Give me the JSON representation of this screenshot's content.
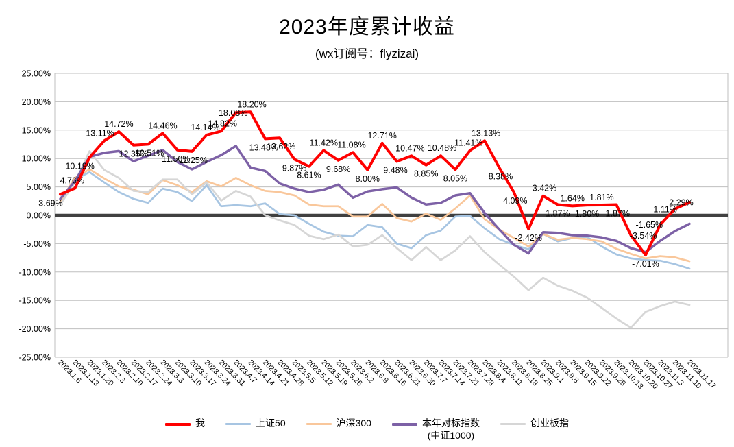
{
  "title": "2023年度累计收益",
  "subtitle": "(wx订阅号：flyzizai)",
  "colors": {
    "grid": "#BFBFBF",
    "zero_line": "#404040",
    "text": "#000000"
  },
  "chart_data": {
    "type": "line",
    "title": "2023年度累计收益",
    "subtitle": "(wx订阅号：flyzizai)",
    "xlabel": "",
    "ylabel": "",
    "ylim": [
      -25,
      25
    ],
    "y_tick_step": 5,
    "grid": true,
    "legend_position": "bottom",
    "y_ticks": [
      "25.00%",
      "20.00%",
      "15.00%",
      "10.00%",
      "5.00%",
      "0.00%",
      "-5.00%",
      "-10.00%",
      "-15.00%",
      "-20.00%",
      "-25.00%"
    ],
    "categories": [
      "2023.1.6",
      "2023.1.13",
      "2023.1.20",
      "2023.2.3",
      "2023.2.10",
      "2023.2.17",
      "2023.2.24",
      "2023.3.3",
      "2023.3.10",
      "2023.3.17",
      "2023.3.24",
      "2023.3.31",
      "2023.4.7",
      "2023.4.14",
      "2023.4.21",
      "2023.4.28",
      "2023.5.5",
      "2023.5.12",
      "2023.5.19",
      "2023.5.26",
      "2023.6.2",
      "2023.6.9",
      "2023.6.16",
      "2023.6.21",
      "2023.6.30",
      "2023.7.7",
      "2023.7.14",
      "2023.7.21",
      "2023.7.28",
      "2023.8.4",
      "2023.8.11",
      "2023.8.18",
      "2023.8.25",
      "2023.9.1",
      "2023.9.8",
      "2023.9.15",
      "2023.9.22",
      "2023.9.28",
      "2023.10.13",
      "2023.10.20",
      "2023.10.27",
      "2023.11.3",
      "2023.11.10",
      "2023.11.17"
    ],
    "series": [
      {
        "name": "上证50",
        "color": "#A7C5E2",
        "width": 2.75,
        "data_labels": false,
        "values": [
          2.2,
          6.3,
          7.6,
          5.8,
          4.1,
          2.9,
          2.2,
          4.7,
          4.1,
          2.5,
          5.3,
          1.6,
          1.8,
          1.6,
          2.1,
          0.2,
          0.0,
          -1.5,
          -2.9,
          -3.6,
          -3.7,
          -1.7,
          -2.1,
          -5.0,
          -5.8,
          -3.5,
          -2.7,
          -0.2,
          -0.1,
          -2.3,
          -4.2,
          -5.2,
          -6.0,
          -3.3,
          -4.6,
          -4.0,
          -3.8,
          -5.5,
          -6.9,
          -7.6,
          -7.9,
          -8.0,
          -8.6,
          -9.4
        ]
      },
      {
        "name": "沪深300",
        "color": "#F9C79B",
        "width": 2.75,
        "data_labels": false,
        "values": [
          2.5,
          6.6,
          8.1,
          6.5,
          5.1,
          4.5,
          3.7,
          6.2,
          5.3,
          4.1,
          6.0,
          5.1,
          6.6,
          5.3,
          4.3,
          4.1,
          3.5,
          1.9,
          1.6,
          1.6,
          -0.2,
          -0.2,
          2.0,
          -0.5,
          -1.1,
          0.3,
          -0.8,
          1.2,
          3.5,
          -0.7,
          -2.5,
          -4.0,
          -5.5,
          -3.3,
          -4.3,
          -4.0,
          -4.2,
          -4.6,
          -5.9,
          -6.8,
          -7.6,
          -7.2,
          -7.4,
          -8.1
        ]
      },
      {
        "name": "创业板指",
        "color": "#D6D6D6",
        "width": 2.75,
        "data_labels": false,
        "values": [
          1.9,
          5.8,
          11.3,
          8.0,
          6.6,
          4.3,
          4.1,
          6.3,
          6.3,
          3.7,
          5.8,
          2.6,
          4.3,
          3.3,
          0.0,
          -0.9,
          -1.7,
          -3.6,
          -4.2,
          -3.4,
          -5.5,
          -5.2,
          -3.5,
          -5.8,
          -7.9,
          -5.6,
          -7.9,
          -6.2,
          -3.7,
          -6.5,
          -8.7,
          -10.8,
          -13.2,
          -11.0,
          -12.4,
          -13.3,
          -14.5,
          -16.3,
          -18.2,
          -19.8,
          -17.0,
          -16.0,
          -15.2,
          -15.8
        ]
      },
      {
        "name": "本年对标指数",
        "name_line2": "(中证1000)",
        "color": "#7D61A6",
        "width": 3.5,
        "data_labels": false,
        "values": [
          2.9,
          6.0,
          10.3,
          11.0,
          11.3,
          9.5,
          10.5,
          11.5,
          9.4,
          8.1,
          9.4,
          10.6,
          12.2,
          8.4,
          7.8,
          5.6,
          4.7,
          4.1,
          4.5,
          5.4,
          3.1,
          4.2,
          4.6,
          4.9,
          3.1,
          1.9,
          2.2,
          3.5,
          3.9,
          0.4,
          -2.5,
          -5.2,
          -6.7,
          -3.0,
          -3.1,
          -3.5,
          -3.6,
          -3.9,
          -4.5,
          -5.8,
          -6.5,
          -4.5,
          -2.8,
          -1.5
        ]
      },
      {
        "name": "我",
        "color": "#FF0000",
        "width": 4,
        "data_labels": true,
        "values": [
          3.69,
          4.76,
          10.19,
          13.11,
          14.72,
          12.35,
          12.51,
          14.46,
          11.5,
          11.25,
          14.14,
          14.82,
          18.08,
          18.2,
          13.48,
          13.62,
          9.87,
          8.61,
          11.42,
          9.68,
          11.08,
          8.0,
          12.71,
          9.48,
          10.47,
          8.85,
          10.48,
          8.05,
          11.41,
          13.13,
          8.38,
          4.09,
          -2.42,
          3.42,
          1.87,
          1.64,
          1.8,
          1.81,
          1.87,
          -3.54,
          -7.01,
          -1.65,
          1.11,
          2.29
        ]
      }
    ],
    "label_positions": [
      "b:-14",
      "a:-4",
      "b:-14",
      "a:-6",
      "a:0",
      "b:0",
      "b:2",
      "a:0",
      "b:-2",
      "b:2",
      "a:-2",
      "a:2",
      "o:-4",
      "a:2",
      "b:-2",
      "b:2",
      "b:0",
      "b:0",
      "a:0",
      "b:0",
      "a:-2",
      "b:0",
      "a:0",
      "b:-2",
      "a:-2",
      "b:0",
      "a:2",
      "b:0",
      "a:-2",
      "a:2",
      "b:2",
      "b:2",
      "b:0",
      "a:2",
      "b:0",
      "a:0",
      "b:0",
      "a:0",
      "b:2",
      "o:18",
      "b:0",
      "o:-16",
      "o:-14",
      "o:-12"
    ],
    "legend_order": [
      "我",
      "上证50",
      "沪深300",
      "本年对标指数",
      "创业板指"
    ]
  }
}
